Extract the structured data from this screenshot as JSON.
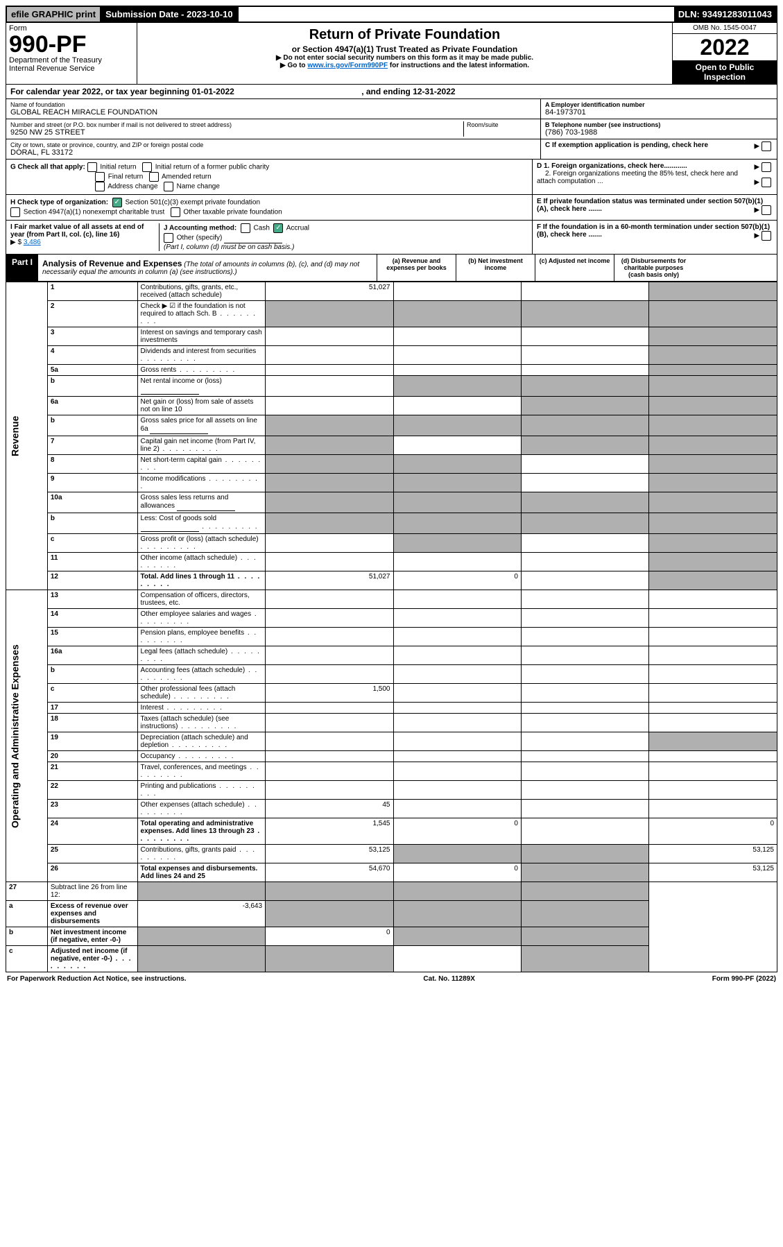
{
  "topbar": {
    "efile": "efile GRAPHIC print",
    "submission": "Submission Date - 2023-10-10",
    "dln": "DLN: 93491283011043"
  },
  "header": {
    "form_label": "Form",
    "form_number": "990-PF",
    "dept": "Department of the Treasury",
    "irs": "Internal Revenue Service",
    "title": "Return of Private Foundation",
    "subtitle": "or Section 4947(a)(1) Trust Treated as Private Foundation",
    "instr1": "▶ Do not enter social security numbers on this form as it may be made public.",
    "instr2_pre": "▶ Go to ",
    "instr2_link": "www.irs.gov/Form990PF",
    "instr2_post": " for instructions and the latest information.",
    "omb": "OMB No. 1545-0047",
    "year": "2022",
    "open": "Open to Public Inspection"
  },
  "cal_year": {
    "pre": "For calendar year 2022, or tax year beginning ",
    "begin": "01-01-2022",
    "mid": " , and ending ",
    "end": "12-31-2022"
  },
  "entity": {
    "name_label": "Name of foundation",
    "name": "GLOBAL REACH MIRACLE FOUNDATION",
    "addr_label": "Number and street (or P.O. box number if mail is not delivered to street address)",
    "room_label": "Room/suite",
    "addr": "9250 NW 25 STREET",
    "city_label": "City or town, state or province, country, and ZIP or foreign postal code",
    "city": "DORAL, FL  33172",
    "ein_label": "A Employer identification number",
    "ein": "84-1973701",
    "phone_label": "B Telephone number (see instructions)",
    "phone": "(786) 703-1988",
    "c_label": "C If exemption application is pending, check here"
  },
  "checks": {
    "g_label": "G Check all that apply:",
    "g_opts": [
      "Initial return",
      "Initial return of a former public charity",
      "Final return",
      "Amended return",
      "Address change",
      "Name change"
    ],
    "h_label": "H Check type of organization:",
    "h_501c3": "Section 501(c)(3) exempt private foundation",
    "h_4947": "Section 4947(a)(1) nonexempt charitable trust",
    "h_other": "Other taxable private foundation",
    "i_label": "I Fair market value of all assets at end of year (from Part II, col. (c), line 16)",
    "i_value": "3,486",
    "j_label": "J Accounting method:",
    "j_cash": "Cash",
    "j_accrual": "Accrual",
    "j_other": "Other (specify)",
    "j_note": "(Part I, column (d) must be on cash basis.)",
    "d1": "D 1. Foreign organizations, check here............",
    "d2": "2. Foreign organizations meeting the 85% test, check here and attach computation ...",
    "e": "E If private foundation status was terminated under section 507(b)(1)(A), check here .......",
    "f": "F If the foundation is in a 60-month termination under section 507(b)(1)(B), check here ......."
  },
  "part1": {
    "label": "Part I",
    "title": "Analysis of Revenue and Expenses",
    "note": "(The total of amounts in columns (b), (c), and (d) may not necessarily equal the amounts in column (a) (see instructions).)",
    "cols": {
      "a": "(a) Revenue and expenses per books",
      "b": "(b) Net investment income",
      "c": "(c) Adjusted net income",
      "d": "(d) Disbursements for charitable purposes (cash basis only)"
    }
  },
  "side_labels": {
    "revenue": "Revenue",
    "expenses": "Operating and Administrative Expenses"
  },
  "lines": [
    {
      "num": "1",
      "desc": "Contributions, gifts, grants, etc., received (attach schedule)",
      "a": "51,027",
      "d_shade": true
    },
    {
      "num": "2",
      "desc": "Check ▶ ☑ if the foundation is not required to attach Sch. B",
      "dots": true,
      "no_amt": true,
      "d_shade": true
    },
    {
      "num": "3",
      "desc": "Interest on savings and temporary cash investments",
      "d_shade": true
    },
    {
      "num": "4",
      "desc": "Dividends and interest from securities",
      "dots": true,
      "d_shade": true
    },
    {
      "num": "5a",
      "desc": "Gross rents",
      "dots": true,
      "d_shade": true
    },
    {
      "num": "b",
      "desc": "Net rental income or (loss)",
      "inline": true,
      "shade_bcd": true,
      "d_shade": true
    },
    {
      "num": "6a",
      "desc": "Net gain or (loss) from sale of assets not on line 10",
      "d_shade": true,
      "c_shade": true
    },
    {
      "num": "b",
      "desc": "Gross sales price for all assets on line 6a",
      "inline": true,
      "shade_all": true
    },
    {
      "num": "7",
      "desc": "Capital gain net income (from Part IV, line 2)",
      "dots": true,
      "a_shade": true,
      "c_shade": true,
      "d_shade": true
    },
    {
      "num": "8",
      "desc": "Net short-term capital gain",
      "dots": true,
      "a_shade": true,
      "b_shade": true,
      "d_shade": true
    },
    {
      "num": "9",
      "desc": "Income modifications",
      "dots": true,
      "a_shade": true,
      "b_shade": true,
      "d_shade": true
    },
    {
      "num": "10a",
      "desc": "Gross sales less returns and allowances",
      "inline": true,
      "shade_all": true
    },
    {
      "num": "b",
      "desc": "Less: Cost of goods sold",
      "dots": true,
      "inline": true,
      "shade_all": true
    },
    {
      "num": "c",
      "desc": "Gross profit or (loss) (attach schedule)",
      "dots": true,
      "b_shade": true,
      "d_shade": true
    },
    {
      "num": "11",
      "desc": "Other income (attach schedule)",
      "dots": true,
      "d_shade": true
    },
    {
      "num": "12",
      "desc": "Total. Add lines 1 through 11",
      "dots": true,
      "bold": true,
      "a": "51,027",
      "b": "0",
      "d_shade": true
    }
  ],
  "exp_lines": [
    {
      "num": "13",
      "desc": "Compensation of officers, directors, trustees, etc."
    },
    {
      "num": "14",
      "desc": "Other employee salaries and wages",
      "dots": true
    },
    {
      "num": "15",
      "desc": "Pension plans, employee benefits",
      "dots": true
    },
    {
      "num": "16a",
      "desc": "Legal fees (attach schedule)",
      "dots": true
    },
    {
      "num": "b",
      "desc": "Accounting fees (attach schedule)",
      "dots": true
    },
    {
      "num": "c",
      "desc": "Other professional fees (attach schedule)",
      "dots": true,
      "a": "1,500"
    },
    {
      "num": "17",
      "desc": "Interest",
      "dots": true
    },
    {
      "num": "18",
      "desc": "Taxes (attach schedule) (see instructions)",
      "dots": true
    },
    {
      "num": "19",
      "desc": "Depreciation (attach schedule) and depletion",
      "dots": true,
      "d_shade": true
    },
    {
      "num": "20",
      "desc": "Occupancy",
      "dots": true
    },
    {
      "num": "21",
      "desc": "Travel, conferences, and meetings",
      "dots": true
    },
    {
      "num": "22",
      "desc": "Printing and publications",
      "dots": true
    },
    {
      "num": "23",
      "desc": "Other expenses (attach schedule)",
      "dots": true,
      "a": "45"
    },
    {
      "num": "24",
      "desc": "Total operating and administrative expenses. Add lines 13 through 23",
      "dots": true,
      "bold": true,
      "a": "1,545",
      "b": "0",
      "d": "0"
    },
    {
      "num": "25",
      "desc": "Contributions, gifts, grants paid",
      "dots": true,
      "a": "53,125",
      "b_shade": true,
      "c_shade": true,
      "d": "53,125"
    },
    {
      "num": "26",
      "desc": "Total expenses and disbursements. Add lines 24 and 25",
      "bold": true,
      "a": "54,670",
      "b": "0",
      "c_shade": true,
      "d": "53,125"
    }
  ],
  "net_lines": [
    {
      "num": "27",
      "desc": "Subtract line 26 from line 12:",
      "shade_all": true
    },
    {
      "num": "a",
      "desc": "Excess of revenue over expenses and disbursements",
      "bold": true,
      "a": "-3,643",
      "b_shade": true,
      "c_shade": true,
      "d_shade": true
    },
    {
      "num": "b",
      "desc": "Net investment income (if negative, enter -0-)",
      "bold": true,
      "a_shade": true,
      "b": "0",
      "c_shade": true,
      "d_shade": true
    },
    {
      "num": "c",
      "desc": "Adjusted net income (if negative, enter -0-)",
      "bold": true,
      "dots": true,
      "a_shade": true,
      "b_shade": true,
      "d_shade": true
    }
  ],
  "footer": {
    "left": "For Paperwork Reduction Act Notice, see instructions.",
    "center": "Cat. No. 11289X",
    "right": "Form 990-PF (2022)"
  }
}
